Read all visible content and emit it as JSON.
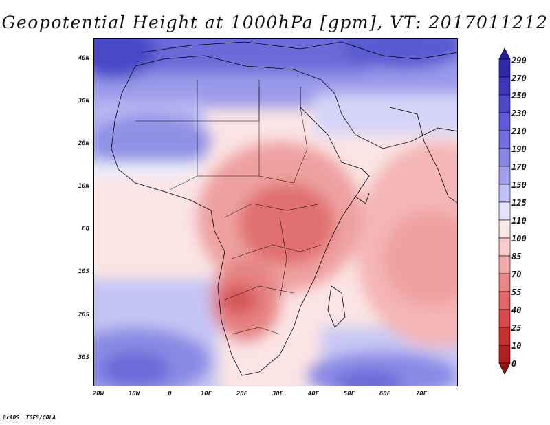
{
  "title": "Geopotential Height at 1000hPa [gpm], VT: 2017011212",
  "credit": "GrADS: IGES/COLA",
  "map": {
    "lat_labels": [
      "40N",
      "30N",
      "20N",
      "10N",
      "EQ",
      "10S",
      "20S",
      "30S"
    ],
    "lon_labels": [
      "20W",
      "10W",
      "0",
      "10E",
      "20E",
      "30E",
      "40E",
      "50E",
      "60E",
      "70E"
    ],
    "lat_range": [
      -37,
      45
    ],
    "lon_range": [
      -22,
      80
    ]
  },
  "colorbar": {
    "labels": [
      "290",
      "270",
      "250",
      "230",
      "210",
      "190",
      "170",
      "150",
      "125",
      "110",
      "100",
      "85",
      "70",
      "55",
      "40",
      "25",
      "10",
      "0"
    ],
    "colors": [
      "#24249a",
      "#2c2ca8",
      "#3a3ab8",
      "#4a4ac8",
      "#5c5cd4",
      "#7070dc",
      "#8888e4",
      "#a0a0ec",
      "#c0c0f4",
      "#e4e4fc",
      "#fce8e8",
      "#f8cccc",
      "#f0aaaa",
      "#e88888",
      "#e06868",
      "#d84848",
      "#c83030",
      "#b02020",
      "#9a1414"
    ]
  },
  "colors": {
    "ocean_south": "#8c8ce8",
    "ocean_mid": "#fadcdc",
    "north_blue": "#7272dc",
    "africa_core": "#e27878",
    "outline": "#000000"
  }
}
